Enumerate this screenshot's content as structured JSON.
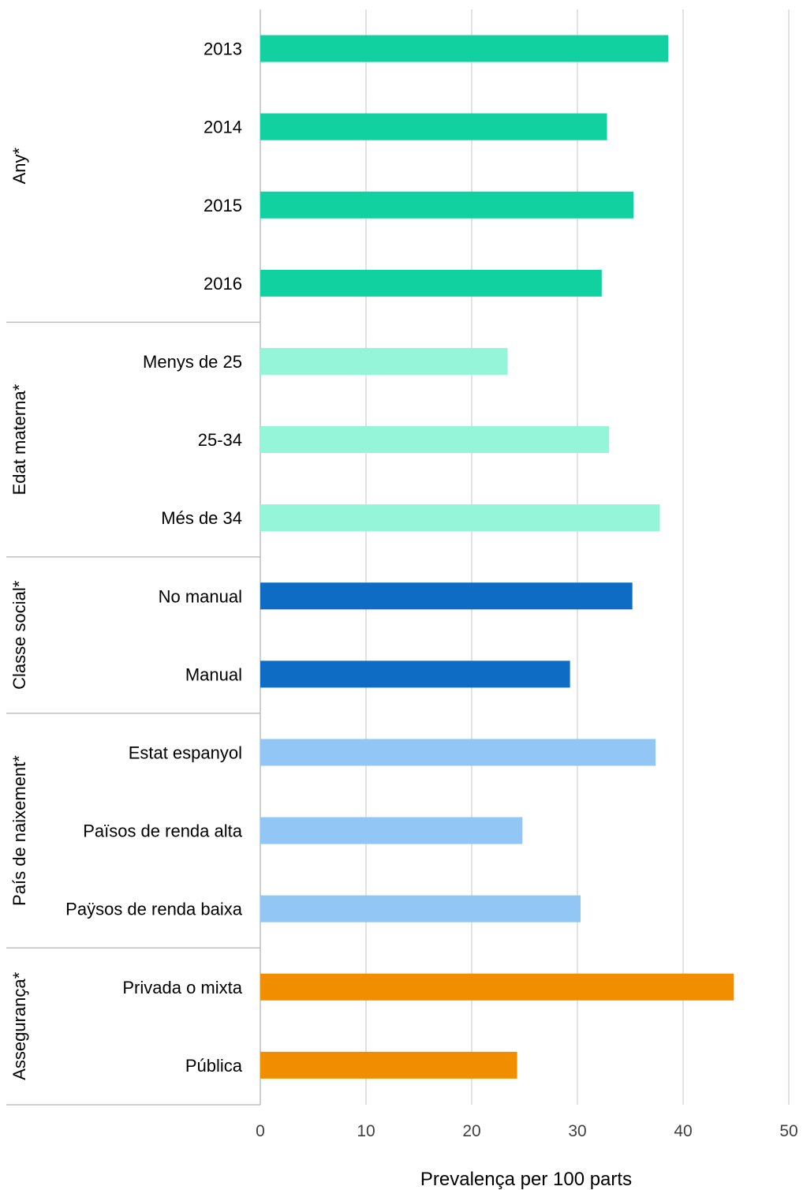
{
  "chart_data": {
    "type": "bar",
    "orientation": "horizontal",
    "title": "",
    "xlabel": "Prevalença per 100 parts",
    "ylabel": "",
    "xlim": [
      0,
      50
    ],
    "xticks": [
      0,
      10,
      20,
      30,
      40,
      50
    ],
    "grid": true,
    "legend": "none",
    "groups": [
      {
        "name": "Any*",
        "color": "#12d1a0",
        "items": [
          {
            "label": "2013",
            "value": 38.6
          },
          {
            "label": "2014",
            "value": 32.8
          },
          {
            "label": "2015",
            "value": 35.3
          },
          {
            "label": "2016",
            "value": 32.3
          }
        ]
      },
      {
        "name": "Edat materna*",
        "color": "#94f5d9",
        "items": [
          {
            "label": "Menys de 25",
            "value": 23.4
          },
          {
            "label": "25-34",
            "value": 33.0
          },
          {
            "label": "Més de 34",
            "value": 37.8
          }
        ]
      },
      {
        "name": "Classe social*",
        "color": "#0f6cc5",
        "items": [
          {
            "label": "No manual",
            "value": 35.2
          },
          {
            "label": "Manual",
            "value": 29.3
          }
        ]
      },
      {
        "name": "País de naixement*",
        "color": "#91c6f5",
        "items": [
          {
            "label": "Estat espanyol",
            "value": 37.4
          },
          {
            "label": "Països de renda alta",
            "value": 24.8
          },
          {
            "label": "Paÿsos de renda baixa",
            "value": 30.3
          }
        ]
      },
      {
        "name": "Asseguranҫa*",
        "color": "#f08e00",
        "items": [
          {
            "label": "Privada o mixta",
            "value": 44.8
          },
          {
            "label": "Pública",
            "value": 24.3
          }
        ]
      }
    ]
  }
}
